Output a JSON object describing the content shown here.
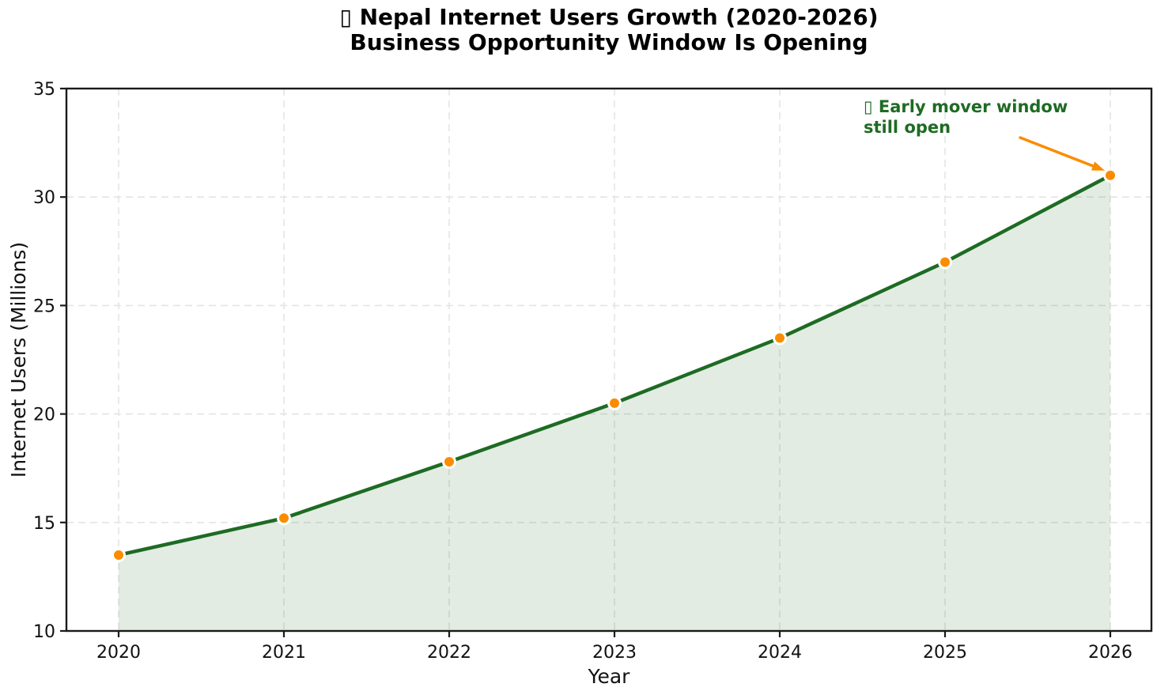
{
  "title": {
    "line1": "▯ Nepal Internet Users Growth (2020-2026)",
    "line2": "Business Opportunity Window Is Opening"
  },
  "chart_data": {
    "type": "area",
    "x": [
      2020,
      2021,
      2022,
      2023,
      2024,
      2025,
      2026
    ],
    "xtick_labels": [
      "2020",
      "2021",
      "2022",
      "2023",
      "2024",
      "2025",
      "2026"
    ],
    "series": [
      {
        "name": "Internet Users",
        "values": [
          13.5,
          15.2,
          17.8,
          20.5,
          23.5,
          27.0,
          31.0
        ]
      }
    ],
    "title": "▯ Nepal Internet Users Growth (2020-2026) Business Opportunity Window Is Opening",
    "xlabel": "Year",
    "ylabel": "Internet Users (Millions)",
    "ylim": [
      10,
      35
    ],
    "yticks": [
      10,
      15,
      20,
      25,
      30,
      35
    ],
    "grid": "dashed",
    "legend": "none",
    "annotation": {
      "lines": [
        "▯ Early mover window",
        "still open"
      ],
      "target": {
        "x": 2026,
        "y": 31.0
      }
    },
    "colors": {
      "line": "#1e6b23",
      "fill_rgba": "rgba(30,107,35,0.13)",
      "marker": "#fb8c00",
      "marker_edge": "#ffffff",
      "arrow": "#fb8c00",
      "annotation_text": "#1e6b23",
      "grid": "#e4e4e4",
      "spine": "#1a1a1a",
      "tick_text": "#111111",
      "title_text": "#000000"
    }
  }
}
